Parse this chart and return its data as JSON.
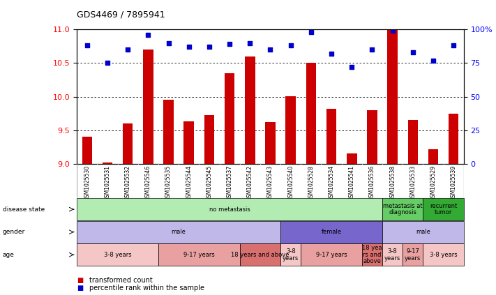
{
  "title": "GDS4469 / 7895941",
  "samples": [
    "GSM1025530",
    "GSM1025531",
    "GSM1025532",
    "GSM1025546",
    "GSM1025535",
    "GSM1025544",
    "GSM1025545",
    "GSM1025537",
    "GSM1025542",
    "GSM1025543",
    "GSM1025540",
    "GSM1025528",
    "GSM1025534",
    "GSM1025541",
    "GSM1025536",
    "GSM1025538",
    "GSM1025533",
    "GSM1025529",
    "GSM1025539"
  ],
  "bar_values": [
    9.4,
    9.02,
    9.6,
    10.7,
    9.95,
    9.63,
    9.72,
    10.35,
    10.6,
    9.62,
    10.01,
    10.5,
    9.82,
    9.15,
    9.8,
    11.0,
    9.65,
    9.22,
    9.75
  ],
  "dot_values": [
    88,
    75,
    85,
    96,
    90,
    87,
    87,
    89,
    90,
    85,
    88,
    98,
    82,
    72,
    85,
    99,
    83,
    77,
    88
  ],
  "ylim_left": [
    9,
    11
  ],
  "ylim_right": [
    0,
    100
  ],
  "yticks_left": [
    9,
    9.5,
    10,
    10.5,
    11
  ],
  "yticks_right": [
    0,
    25,
    50,
    75,
    100
  ],
  "bar_color": "#cc0000",
  "dot_color": "#0000cc",
  "disease_state_rows": [
    {
      "label": "no metastasis",
      "start": 0,
      "end": 15,
      "color": "#b3ecb3"
    },
    {
      "label": "metastasis at\ndiagnosis",
      "start": 15,
      "end": 17,
      "color": "#66cc66"
    },
    {
      "label": "recurrent\ntumor",
      "start": 17,
      "end": 19,
      "color": "#33aa33"
    }
  ],
  "gender_rows": [
    {
      "label": "male",
      "start": 0,
      "end": 10,
      "color": "#c0b8e8"
    },
    {
      "label": "female",
      "start": 10,
      "end": 15,
      "color": "#7766cc"
    },
    {
      "label": "male",
      "start": 15,
      "end": 19,
      "color": "#c0b8e8"
    }
  ],
  "age_rows": [
    {
      "label": "3-8 years",
      "start": 0,
      "end": 4,
      "color": "#f5c6c6"
    },
    {
      "label": "9-17 years",
      "start": 4,
      "end": 8,
      "color": "#e8a0a0"
    },
    {
      "label": "18 years and above",
      "start": 8,
      "end": 10,
      "color": "#d97070"
    },
    {
      "label": "3-8\nyears",
      "start": 10,
      "end": 11,
      "color": "#f5c6c6"
    },
    {
      "label": "9-17 years",
      "start": 11,
      "end": 14,
      "color": "#e8a0a0"
    },
    {
      "label": "18 yea\nrs and\nabove",
      "start": 14,
      "end": 15,
      "color": "#d97070"
    },
    {
      "label": "3-8\nyears",
      "start": 15,
      "end": 16,
      "color": "#f5c6c6"
    },
    {
      "label": "9-17\nyears",
      "start": 16,
      "end": 17,
      "color": "#e8a0a0"
    },
    {
      "label": "3-8 years",
      "start": 17,
      "end": 19,
      "color": "#f5c6c6"
    }
  ],
  "row_labels": [
    "disease state",
    "gender",
    "age"
  ],
  "legend_items": [
    {
      "color": "#cc0000",
      "label": "transformed count"
    },
    {
      "color": "#0000cc",
      "label": "percentile rank within the sample"
    }
  ],
  "tick_bg_color": "#d8d8d8"
}
